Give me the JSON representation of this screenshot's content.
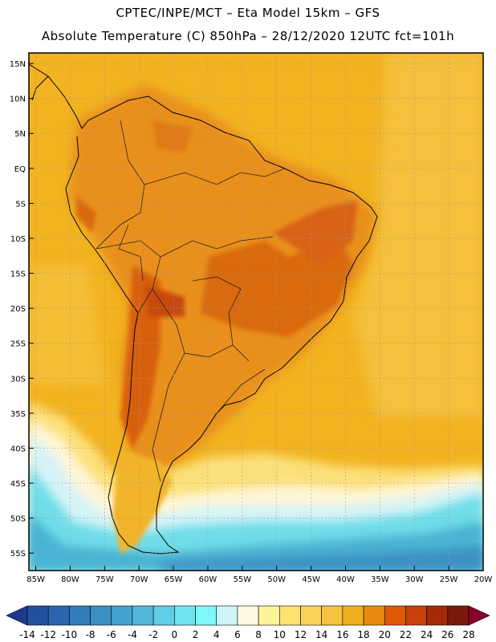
{
  "header": {
    "line1": "CPTEC/INPE/MCT –  Eta Model 15km – GFS",
    "line2": "Absolute Temperature (C) 850hPa – 28/12/2020 12UTC fct=101h"
  },
  "map": {
    "lat_labels": [
      "15N",
      "10N",
      "5N",
      "EQ",
      "5S",
      "10S",
      "15S",
      "20S",
      "25S",
      "30S",
      "35S",
      "40S",
      "45S",
      "50S",
      "55S"
    ],
    "lon_labels": [
      "85W",
      "80W",
      "75W",
      "70W",
      "65W",
      "60W",
      "55W",
      "50W",
      "45W",
      "40W",
      "35W",
      "30W",
      "25W",
      "20W"
    ],
    "lat_values": [
      15,
      10,
      5,
      0,
      -5,
      -10,
      -15,
      -20,
      -25,
      -30,
      -35,
      -40,
      -45,
      -50,
      -55
    ],
    "lon_values": [
      -85,
      -80,
      -75,
      -70,
      -65,
      -60,
      -55,
      -50,
      -45,
      -40,
      -35,
      -30,
      -25,
      -20
    ],
    "extent": {
      "lon_min": -86,
      "lon_max": -20,
      "lat_min": -57.5,
      "lat_max": 16.5
    }
  },
  "colorbar": {
    "labels": [
      "-14",
      "-12",
      "-10",
      "-8",
      "-6",
      "-4",
      "-2",
      "0",
      "2",
      "4",
      "6",
      "8",
      "10",
      "12",
      "14",
      "16",
      "18",
      "20",
      "22",
      "24",
      "26",
      "28"
    ],
    "colors": [
      "#1f3a8c",
      "#21509c",
      "#2b66ad",
      "#327cb9",
      "#3c8fc3",
      "#46a3cf",
      "#52b8da",
      "#5ecde6",
      "#6ee3f0",
      "#7df7f7",
      "#d0f5f8",
      "#fff8e1",
      "#fff39a",
      "#ffe26e",
      "#fbd45a",
      "#f5c342",
      "#efae20",
      "#e98a10",
      "#df5a08",
      "#c8400a",
      "#a52a08",
      "#7a1a0a",
      "#8b0029"
    ],
    "unit": "C"
  }
}
